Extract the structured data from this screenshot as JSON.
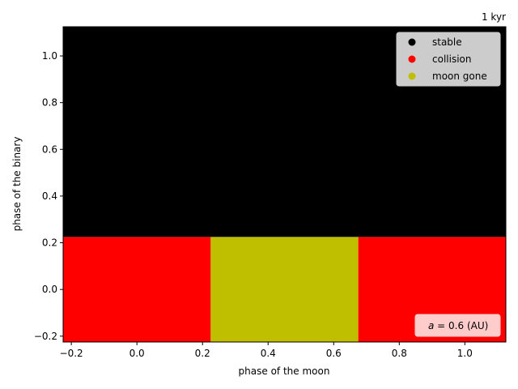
{
  "chart_data": {
    "type": "heatmap",
    "corner_label": "1 kyr",
    "xlabel": "phase of the moon",
    "ylabel": "phase of the binary",
    "xlim": [
      -0.225,
      1.125
    ],
    "ylim": [
      -0.225,
      1.125
    ],
    "xticks": [
      -0.2,
      0.0,
      0.2,
      0.4,
      0.6,
      0.8,
      1.0
    ],
    "xtick_labels": [
      "−0.2",
      "0.0",
      "0.2",
      "0.4",
      "0.6",
      "0.8",
      "1.0"
    ],
    "yticks": [
      -0.2,
      0.0,
      0.2,
      0.4,
      0.6,
      0.8,
      1.0
    ],
    "ytick_labels": [
      "−0.2",
      "0.0",
      "0.2",
      "0.4",
      "0.6",
      "0.8",
      "1.0"
    ],
    "cells": [
      {
        "x0": -0.225,
        "x1": 0.225,
        "y0": -0.225,
        "y1": 0.225,
        "status": "collision"
      },
      {
        "x0": 0.225,
        "x1": 0.675,
        "y0": -0.225,
        "y1": 0.225,
        "status": "moon gone"
      },
      {
        "x0": 0.675,
        "x1": 1.125,
        "y0": -0.225,
        "y1": 0.225,
        "status": "collision"
      },
      {
        "x0": -0.225,
        "x1": 1.125,
        "y0": 0.225,
        "y1": 1.125,
        "status": "stable"
      }
    ],
    "legend": {
      "placement": "top-right",
      "entries": [
        {
          "label": "stable",
          "color": "#000000"
        },
        {
          "label": "collision",
          "color": "#ff0000"
        },
        {
          "label": "moon gone",
          "color": "#bfbf00"
        }
      ]
    },
    "annotation": {
      "placement": "bottom-right",
      "var": "a",
      "text": " = 0.6 (AU)",
      "box_color": "#ffcccc"
    },
    "grid": false
  }
}
